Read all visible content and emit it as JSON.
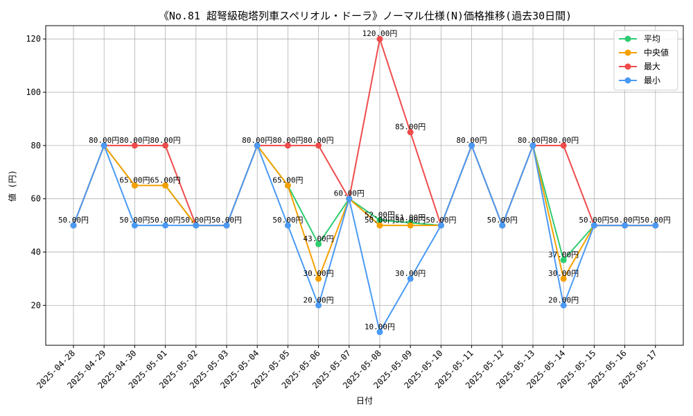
{
  "chart_data": {
    "type": "line",
    "title": "《No.81 超弩級砲塔列車スペリオル・ドーラ》ノーマル仕様(N)価格推移(過去30日間)",
    "xlabel": "日付",
    "ylabel": "値 (円)",
    "ylim": [
      5,
      125
    ],
    "yticks": [
      20,
      40,
      60,
      80,
      100,
      120
    ],
    "grid": true,
    "legend_position": "top-right",
    "label_suffix": "円",
    "categories": [
      "2025-04-28",
      "2025-04-29",
      "2025-04-30",
      "2025-05-01",
      "2025-05-02",
      "2025-05-03",
      "2025-05-04",
      "2025-05-05",
      "2025-05-06",
      "2025-05-07",
      "2025-05-08",
      "2025-05-09",
      "2025-05-10",
      "2025-05-11",
      "2025-05-12",
      "2025-05-13",
      "2025-05-14",
      "2025-05-15",
      "2025-05-16",
      "2025-05-17"
    ],
    "series": [
      {
        "name": "平均",
        "color": "#2ecc71",
        "values": [
          50,
          80,
          65,
          65,
          50,
          50,
          80,
          65,
          43,
          60,
          52,
          51,
          50,
          80,
          50,
          80,
          37,
          50,
          50,
          50
        ]
      },
      {
        "name": "中央値",
        "color": "#f5a000",
        "values": [
          50,
          80,
          65,
          65,
          50,
          50,
          80,
          65,
          30,
          60,
          50,
          50,
          50,
          80,
          50,
          80,
          30,
          50,
          50,
          50
        ]
      },
      {
        "name": "最大",
        "color": "#ef4b4b",
        "values": [
          50,
          80,
          80,
          80,
          50,
          50,
          80,
          80,
          80,
          60,
          120,
          85,
          50,
          80,
          50,
          80,
          80,
          50,
          50,
          50
        ]
      },
      {
        "name": "最小",
        "color": "#4a9af5",
        "values": [
          50,
          80,
          50,
          50,
          50,
          50,
          80,
          50,
          20,
          60,
          10,
          30,
          50,
          80,
          50,
          80,
          20,
          50,
          50,
          50
        ]
      }
    ]
  }
}
